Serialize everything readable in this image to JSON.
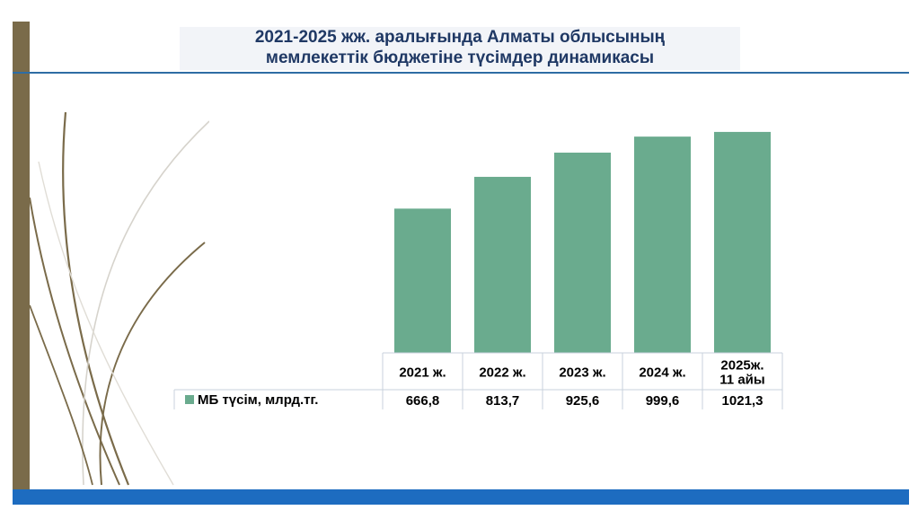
{
  "title": {
    "line1": "2021-2025 жж. аралығында Алматы облысының",
    "line2": "мемлекеттік бюджетіне түсімдер динамикасы"
  },
  "colors": {
    "bar": "#6aab8e",
    "title": "#1f3864",
    "accent_line": "#2e6da4",
    "bottom_bar": "#1d6cc0",
    "left_stripe": "#7a6b4a",
    "table_border": "#c9d2dc"
  },
  "chart_data": {
    "type": "bar",
    "categories": [
      "2021 ж.",
      "2022 ж.",
      "2023 ж.",
      "2024 ж.",
      "2025ж. 11 айы"
    ],
    "category_lines": [
      [
        "2021 ж."
      ],
      [
        "2022 ж."
      ],
      [
        "2023 ж."
      ],
      [
        "2024 ж."
      ],
      [
        "2025ж.",
        "11 айы"
      ]
    ],
    "series": [
      {
        "name": "МБ түсім, млрд.тг.",
        "values": [
          666.8,
          813.7,
          925.6,
          999.6,
          1021.3
        ],
        "value_labels": [
          "666,8",
          "813,7",
          "925,6",
          "999,6",
          "1021,3"
        ]
      }
    ],
    "ylim": [
      0,
      1050
    ],
    "grid": false,
    "legend": "data-table",
    "data_table": true
  }
}
